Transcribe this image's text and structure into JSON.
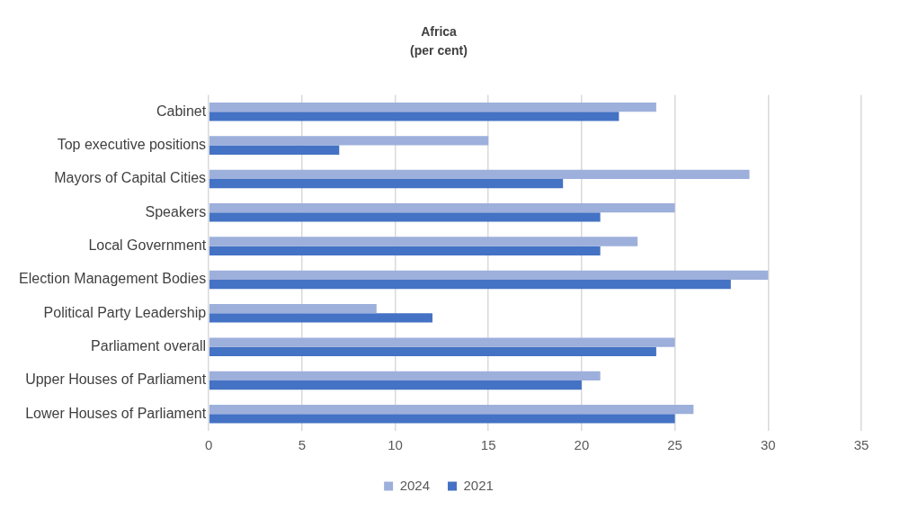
{
  "chart_data": {
    "type": "bar",
    "orientation": "horizontal",
    "title": "Africa",
    "subtitle": "(per cent)",
    "categories": [
      "Cabinet",
      "Top executive positions",
      "Mayors of Capital Cities",
      "Speakers",
      "Local Government",
      "Election Management Bodies",
      "Political Party Leadership",
      "Parliament overall",
      "Upper Houses of Parliament",
      "Lower Houses of Parliament"
    ],
    "series": [
      {
        "name": "2024",
        "color": "#9dafdb",
        "values": [
          24,
          15,
          29,
          25,
          23,
          30,
          9,
          25,
          21,
          26
        ]
      },
      {
        "name": "2021",
        "color": "#4472c4",
        "values": [
          22,
          7,
          19,
          21,
          21,
          28,
          12,
          24,
          20,
          25
        ]
      }
    ],
    "xlim": [
      0,
      35
    ],
    "xticks": [
      0,
      5,
      10,
      15,
      20,
      25,
      30,
      35
    ],
    "grid": "x",
    "legend": "bottom"
  }
}
